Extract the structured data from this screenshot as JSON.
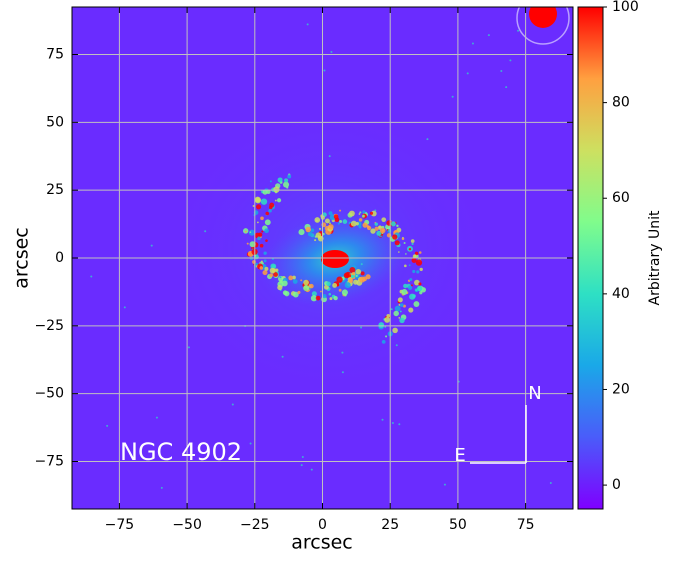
{
  "chart_data": {
    "type": "image",
    "annotations": [
      "NGC 4902",
      "N",
      "E"
    ],
    "xlabel": "arcsec",
    "ylabel": "arcsec",
    "xlim": [
      -92.5,
      92.5
    ],
    "ylim": [
      -92.5,
      92.5
    ],
    "xticks": [
      {
        "value": -75,
        "label": "−75"
      },
      {
        "value": -50,
        "label": "−50"
      },
      {
        "value": -25,
        "label": "−25"
      },
      0,
      25,
      50,
      75
    ],
    "yticks": [
      {
        "value": -75,
        "label": "−75"
      },
      {
        "value": -50,
        "label": "−50"
      },
      {
        "value": -25,
        "label": "−25"
      },
      0,
      25,
      50,
      75
    ],
    "grid": true,
    "colorbar": {
      "label": "Arbitrary Unit",
      "clim": [
        -5,
        100
      ],
      "ticks": [
        0,
        20,
        40,
        60,
        80,
        100
      ],
      "colormap": [
        "#7f00ff",
        "#4a5cfa",
        "#1aa8e8",
        "#2ee0c4",
        "#80fc8c",
        "#cde060",
        "#ffa040",
        "#ff0000"
      ]
    }
  }
}
